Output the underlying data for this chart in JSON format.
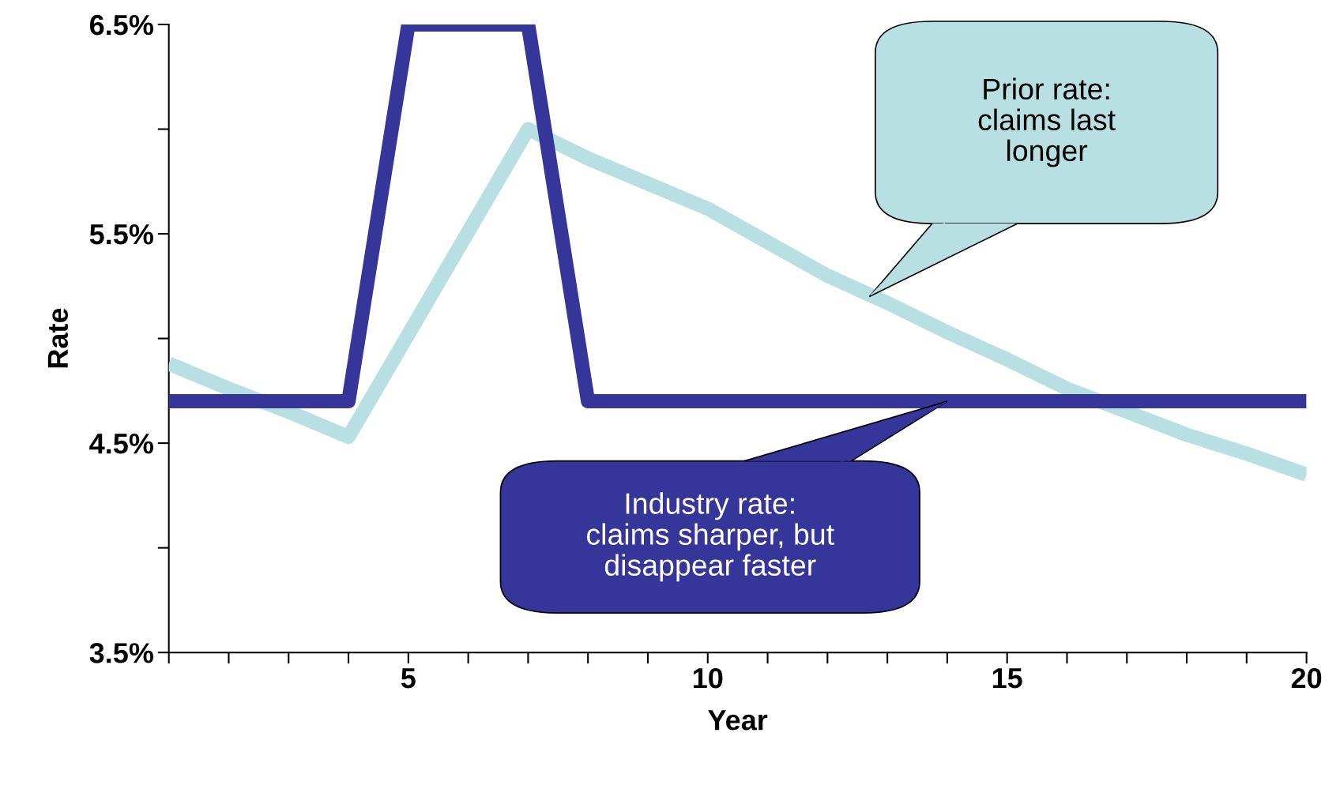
{
  "chart_data": {
    "type": "line",
    "xlabel": "Year",
    "ylabel": "Rate",
    "x": [
      1,
      2,
      3,
      4,
      5,
      6,
      7,
      8,
      9,
      10,
      11,
      12,
      13,
      14,
      15,
      16,
      17,
      18,
      19,
      20
    ],
    "series": [
      {
        "color": "#36369a",
        "values": [
          4.7,
          4.7,
          4.7,
          4.7,
          6.5,
          6.5,
          6.5,
          4.7,
          4.7,
          4.7,
          4.7,
          4.7,
          4.7,
          4.7,
          4.7,
          4.7,
          4.7,
          4.7,
          4.7,
          4.7
        ]
      },
      {
        "color": "#b8e0e3",
        "values": [
          4.88,
          4.76,
          4.65,
          4.53,
          5.02,
          5.51,
          6.0,
          5.86,
          5.74,
          5.62,
          5.46,
          5.3,
          5.17,
          5.03,
          4.9,
          4.76,
          4.65,
          4.54,
          4.45,
          4.35
        ]
      }
    ],
    "annotations": [
      {
        "text": "Industry rate:\nclaims sharper, but\ndisappear faster",
        "x": 14,
        "y": 4.7
      },
      {
        "text": "Prior rate:\nclaims last\nlonger",
        "x": 12.7,
        "y": 5.2
      }
    ],
    "xlim": [
      1,
      20
    ],
    "xticks": [
      {
        "value": 1,
        "label": null
      },
      {
        "value": 2,
        "label": null
      },
      {
        "value": 3,
        "label": null
      },
      {
        "value": 4,
        "label": null
      },
      5,
      {
        "value": 6,
        "label": null
      },
      {
        "value": 7,
        "label": null
      },
      {
        "value": 8,
        "label": null
      },
      {
        "value": 9,
        "label": null
      },
      10,
      {
        "value": 11,
        "label": null
      },
      {
        "value": 12,
        "label": null
      },
      {
        "value": 13,
        "label": null
      },
      {
        "value": 14,
        "label": null
      },
      15,
      {
        "value": 16,
        "label": null
      },
      {
        "value": 17,
        "label": null
      },
      {
        "value": 18,
        "label": null
      },
      {
        "value": 19,
        "label": null
      },
      20
    ],
    "ylim": [
      3.5,
      6.5
    ],
    "yticks": [
      {
        "value": 3.5,
        "label": "3.5%"
      },
      {
        "value": 4.0,
        "label": null
      },
      {
        "value": 4.5,
        "label": "4.5%"
      },
      {
        "value": 5.0,
        "label": null
      },
      {
        "value": 5.5,
        "label": "5.5%"
      },
      {
        "value": 6.0,
        "label": null
      },
      {
        "value": 6.5,
        "label": "6.5%"
      }
    ],
    "grid": false,
    "legend": false,
    "marker": "none",
    "line_style": "solid"
  }
}
